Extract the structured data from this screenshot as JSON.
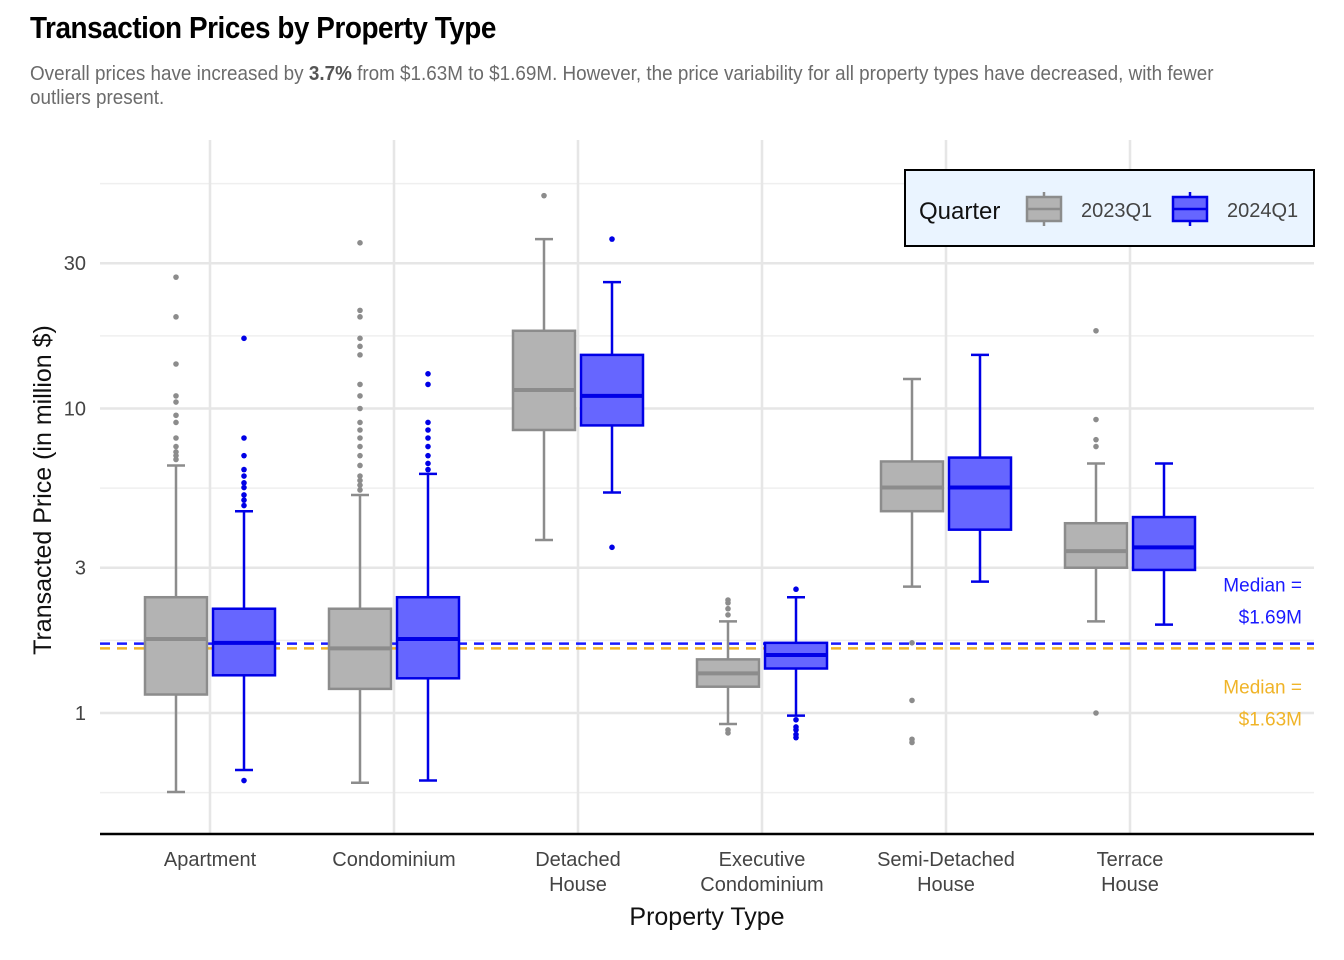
{
  "title": "Transaction Prices by Property Type",
  "subtitle": {
    "prefix": "Overall prices have increased by ",
    "highlight": "3.7%",
    "suffix": " from $1.63M to $1.69M. However, the price variability for all property types have decreased, with fewer outliers present."
  },
  "colors": {
    "q2023_fill": "#b3b3b3",
    "q2023_line": "#8c8c8c",
    "q2024_fill": "#6666ff",
    "q2024_line": "#0000e6",
    "median_2024": "#1a1aff",
    "median_2023": "#f0b428",
    "legend_bg": "#eaf4ff",
    "grid": "#e6e6e6"
  },
  "chart_data": {
    "type": "boxplot",
    "x_label": "Property Type",
    "y_label": "Transacted Price (in million $)",
    "y_scale": "log10",
    "ylim": [
      0.55,
      55
    ],
    "y_ticks": [
      1,
      3,
      10,
      30
    ],
    "categories": [
      [
        "Apartment"
      ],
      [
        "Condominium"
      ],
      [
        "Detached",
        "House"
      ],
      [
        "Executive",
        "Condominium"
      ],
      [
        "Semi-Detached",
        "House"
      ],
      [
        "Terrace",
        "House"
      ]
    ],
    "legend": {
      "title": "Quarter",
      "position": "top-right"
    },
    "series": [
      {
        "name": "2023Q1",
        "boxes": [
          {
            "low": 0.55,
            "q1": 1.15,
            "median": 1.75,
            "q3": 2.4,
            "high": 6.5,
            "outliers": [
              6.8,
              7.0,
              7.2,
              7.5,
              8.0,
              9.0,
              9.5,
              10.5,
              11.0,
              14.0,
              20.0,
              27.0
            ]
          },
          {
            "low": 0.59,
            "q1": 1.2,
            "median": 1.63,
            "q3": 2.2,
            "high": 5.2,
            "outliers": [
              5.4,
              5.6,
              5.8,
              6.0,
              6.5,
              7.0,
              7.5,
              8.0,
              8.5,
              9.0,
              10.0,
              11.0,
              12.0,
              15.0,
              16.0,
              17.0,
              20.0,
              21.0,
              35.0
            ]
          },
          {
            "low": 3.7,
            "q1": 8.5,
            "median": 11.5,
            "q3": 18.0,
            "high": 36.0,
            "outliers": [
              50.0
            ]
          },
          {
            "low": 0.92,
            "q1": 1.22,
            "median": 1.35,
            "q3": 1.5,
            "high": 2.0,
            "outliers": [
              0.88,
              0.86,
              2.1,
              2.2,
              2.3,
              2.35
            ]
          },
          {
            "low": 2.6,
            "q1": 4.6,
            "median": 5.5,
            "q3": 6.7,
            "high": 12.5,
            "outliers": [
              1.7,
              1.1,
              0.82,
              0.8
            ]
          },
          {
            "low": 2.0,
            "q1": 3.0,
            "median": 3.4,
            "q3": 4.2,
            "high": 6.6,
            "outliers": [
              7.5,
              7.9,
              9.2,
              18.0,
              1.0
            ]
          }
        ]
      },
      {
        "name": "2024Q1",
        "boxes": [
          {
            "low": 0.65,
            "q1": 1.33,
            "median": 1.7,
            "q3": 2.2,
            "high": 4.6,
            "outliers": [
              0.6,
              4.8,
              5.0,
              5.2,
              5.5,
              5.7,
              6.0,
              6.3,
              7.0,
              8.0,
              17.0
            ]
          },
          {
            "low": 0.6,
            "q1": 1.3,
            "median": 1.75,
            "q3": 2.4,
            "high": 6.1,
            "outliers": [
              6.3,
              6.6,
              7.0,
              7.5,
              8.0,
              8.5,
              9.0,
              12.0,
              13.0
            ]
          },
          {
            "low": 5.3,
            "q1": 8.8,
            "median": 11.0,
            "q3": 15.0,
            "high": 26.0,
            "outliers": [
              36.0,
              3.5
            ]
          },
          {
            "low": 0.98,
            "q1": 1.4,
            "median": 1.55,
            "q3": 1.7,
            "high": 2.4,
            "outliers": [
              0.95,
              0.9,
              0.88,
              0.85,
              0.83,
              2.55
            ]
          },
          {
            "low": 2.7,
            "q1": 4.0,
            "median": 5.5,
            "q3": 6.9,
            "high": 15.0,
            "outliers": []
          },
          {
            "low": 1.95,
            "q1": 2.95,
            "median": 3.5,
            "q3": 4.4,
            "high": 6.6,
            "outliers": []
          }
        ]
      }
    ],
    "reference_lines": [
      {
        "label": "Median =\n$1.69M",
        "value": 1.69,
        "style": "dashed",
        "series": "2024Q1"
      },
      {
        "label": "Median =\n$1.63M",
        "value": 1.63,
        "style": "dashed",
        "series": "2023Q1"
      }
    ]
  }
}
